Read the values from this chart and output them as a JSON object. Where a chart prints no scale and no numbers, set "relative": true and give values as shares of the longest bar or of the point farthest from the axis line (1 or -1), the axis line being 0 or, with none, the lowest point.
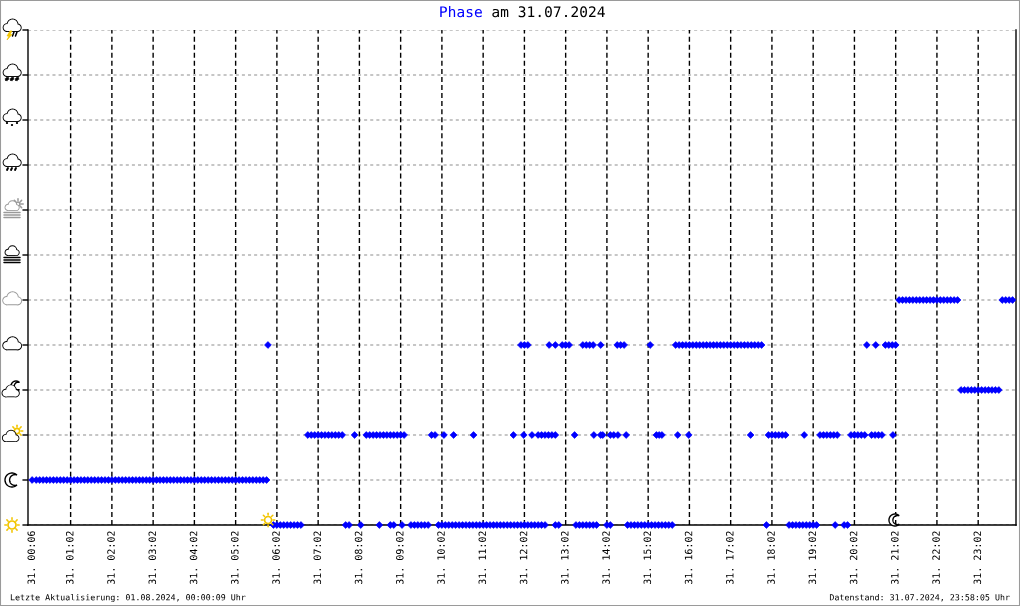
{
  "chart_data": {
    "type": "scatter",
    "title": "am 31.07.2024",
    "relative": true,
    "xlim": [
      "2024-07-31T00:00",
      "2024-07-31T23:57"
    ],
    "xticks": [
      {
        "value": "2024-07-31T00:06",
        "label": "31. 00:06"
      },
      {
        "value": "2024-07-31T01:02",
        "label": "31. 01:02"
      },
      {
        "value": "2024-07-31T02:02",
        "label": "31. 02:02"
      },
      {
        "value": "2024-07-31T03:02",
        "label": "31. 03:02"
      },
      {
        "value": "2024-07-31T04:02",
        "label": "31. 04:02"
      },
      {
        "value": "2024-07-31T05:02",
        "label": "31. 05:02"
      },
      {
        "value": "2024-07-31T06:02",
        "label": "31. 06:02"
      },
      {
        "value": "2024-07-31T07:02",
        "label": "31. 07:02"
      },
      {
        "value": "2024-07-31T08:02",
        "label": "31. 08:02"
      },
      {
        "value": "2024-07-31T09:02",
        "label": "31. 09:02"
      },
      {
        "value": "2024-07-31T10:02",
        "label": "31. 10:02"
      },
      {
        "value": "2024-07-31T11:02",
        "label": "31. 11:02"
      },
      {
        "value": "2024-07-31T12:02",
        "label": "31. 12:02"
      },
      {
        "value": "2024-07-31T13:02",
        "label": "31. 13:02"
      },
      {
        "value": "2024-07-31T14:02",
        "label": "31. 14:02"
      },
      {
        "value": "2024-07-31T15:02",
        "label": "31. 15:02"
      },
      {
        "value": "2024-07-31T16:02",
        "label": "31. 16:02"
      },
      {
        "value": "2024-07-31T17:02",
        "label": "31. 17:02"
      },
      {
        "value": "2024-07-31T18:02",
        "label": "31. 18:02"
      },
      {
        "value": "2024-07-31T19:02",
        "label": "31. 19:02"
      },
      {
        "value": "2024-07-31T20:02",
        "label": "31. 20:02"
      },
      {
        "value": "2024-07-31T21:02",
        "label": "31. 21:02"
      },
      {
        "value": "2024-07-31T22:02",
        "label": "31. 22:02"
      },
      {
        "value": "2024-07-31T23:02",
        "label": "31. 23:02"
      }
    ],
    "grid": true,
    "marker": "diamond",
    "series": [
      {
        "name": "Phase",
        "color": "#0000ff",
        "x": [
          "2024-07-31T00:06",
          "2024-07-31T00:12",
          "2024-07-31T00:17",
          "2024-07-31T00:22",
          "2024-07-31T00:27",
          "2024-07-31T00:32",
          "2024-07-31T00:37",
          "2024-07-31T00:42",
          "2024-07-31T00:47",
          "2024-07-31T00:52",
          "2024-07-31T00:57",
          "2024-07-31T01:02",
          "2024-07-31T01:07",
          "2024-07-31T01:12",
          "2024-07-31T01:17",
          "2024-07-31T01:22",
          "2024-07-31T01:27",
          "2024-07-31T01:32",
          "2024-07-31T01:37",
          "2024-07-31T01:42",
          "2024-07-31T01:47",
          "2024-07-31T01:52",
          "2024-07-31T01:57",
          "2024-07-31T02:02",
          "2024-07-31T02:07",
          "2024-07-31T02:12",
          "2024-07-31T02:17",
          "2024-07-31T02:22",
          "2024-07-31T02:27",
          "2024-07-31T02:32",
          "2024-07-31T02:37",
          "2024-07-31T02:42",
          "2024-07-31T02:47",
          "2024-07-31T02:52",
          "2024-07-31T02:57",
          "2024-07-31T03:02",
          "2024-07-31T03:07",
          "2024-07-31T03:12",
          "2024-07-31T03:17",
          "2024-07-31T03:22",
          "2024-07-31T03:27",
          "2024-07-31T03:32",
          "2024-07-31T03:37",
          "2024-07-31T03:42",
          "2024-07-31T03:47",
          "2024-07-31T03:52",
          "2024-07-31T03:57",
          "2024-07-31T04:02",
          "2024-07-31T04:07",
          "2024-07-31T04:12",
          "2024-07-31T04:17",
          "2024-07-31T04:22",
          "2024-07-31T04:27",
          "2024-07-31T04:32",
          "2024-07-31T04:37",
          "2024-07-31T04:42",
          "2024-07-31T04:47",
          "2024-07-31T04:52",
          "2024-07-31T04:57",
          "2024-07-31T05:02",
          "2024-07-31T05:07",
          "2024-07-31T05:12",
          "2024-07-31T05:17",
          "2024-07-31T05:22",
          "2024-07-31T05:27",
          "2024-07-31T05:32",
          "2024-07-31T05:37",
          "2024-07-31T05:42",
          "2024-07-31T05:47",
          "2024-07-31T05:49",
          "2024-07-31T11:57",
          "2024-07-31T12:02",
          "2024-07-31T12:07",
          "2024-07-31T12:38",
          "2024-07-31T12:47",
          "2024-07-31T12:57",
          "2024-07-31T13:02",
          "2024-07-31T13:07",
          "2024-07-31T13:27",
          "2024-07-31T13:32",
          "2024-07-31T13:37",
          "2024-07-31T13:42",
          "2024-07-31T13:53",
          "2024-07-31T14:17",
          "2024-07-31T14:22",
          "2024-07-31T14:27",
          "2024-07-31T15:05",
          "2024-07-31T15:42",
          "2024-07-31T15:47",
          "2024-07-31T15:52",
          "2024-07-31T15:57",
          "2024-07-31T16:02",
          "2024-07-31T16:07",
          "2024-07-31T16:12",
          "2024-07-31T16:17",
          "2024-07-31T16:22",
          "2024-07-31T16:27",
          "2024-07-31T16:32",
          "2024-07-31T16:37",
          "2024-07-31T16:42",
          "2024-07-31T16:47",
          "2024-07-31T16:52",
          "2024-07-31T16:57",
          "2024-07-31T17:02",
          "2024-07-31T17:07",
          "2024-07-31T17:12",
          "2024-07-31T17:17",
          "2024-07-31T17:22",
          "2024-07-31T17:27",
          "2024-07-31T17:32",
          "2024-07-31T17:37",
          "2024-07-31T17:42",
          "2024-07-31T17:47",
          "2024-07-31T20:20",
          "2024-07-31T20:33",
          "2024-07-31T20:47",
          "2024-07-31T20:52",
          "2024-07-31T20:57",
          "2024-07-31T21:02",
          "2024-07-31T06:47",
          "2024-07-31T06:52",
          "2024-07-31T06:57",
          "2024-07-31T07:02",
          "2024-07-31T07:07",
          "2024-07-31T07:12",
          "2024-07-31T07:17",
          "2024-07-31T07:22",
          "2024-07-31T07:27",
          "2024-07-31T07:32",
          "2024-07-31T07:37",
          "2024-07-31T07:55",
          "2024-07-31T08:12",
          "2024-07-31T08:17",
          "2024-07-31T08:22",
          "2024-07-31T08:27",
          "2024-07-31T08:32",
          "2024-07-31T08:37",
          "2024-07-31T08:42",
          "2024-07-31T08:47",
          "2024-07-31T08:52",
          "2024-07-31T08:57",
          "2024-07-31T09:02",
          "2024-07-31T09:07",
          "2024-07-31T09:47",
          "2024-07-31T09:52",
          "2024-07-31T10:05",
          "2024-07-31T10:19",
          "2024-07-31T10:48",
          "2024-07-31T11:46",
          "2024-07-31T12:01",
          "2024-07-31T12:13",
          "2024-07-31T12:22",
          "2024-07-31T12:27",
          "2024-07-31T12:32",
          "2024-07-31T12:37",
          "2024-07-31T12:42",
          "2024-07-31T12:47",
          "2024-07-31T13:15",
          "2024-07-31T13:43",
          "2024-07-31T13:53",
          "2024-07-31T13:56",
          "2024-07-31T14:07",
          "2024-07-31T14:12",
          "2024-07-31T14:18",
          "2024-07-31T14:30",
          "2024-07-31T15:14",
          "2024-07-31T15:18",
          "2024-07-31T15:22",
          "2024-07-31T15:45",
          "2024-07-31T16:01",
          "2024-07-31T17:31",
          "2024-07-31T17:57",
          "2024-07-31T18:02",
          "2024-07-31T18:07",
          "2024-07-31T18:12",
          "2024-07-31T18:17",
          "2024-07-31T18:22",
          "2024-07-31T18:49",
          "2024-07-31T19:12",
          "2024-07-31T19:17",
          "2024-07-31T19:22",
          "2024-07-31T19:27",
          "2024-07-31T19:32",
          "2024-07-31T19:37",
          "2024-07-31T19:57",
          "2024-07-31T20:02",
          "2024-07-31T20:07",
          "2024-07-31T20:12",
          "2024-07-31T20:17",
          "2024-07-31T20:27",
          "2024-07-31T20:32",
          "2024-07-31T20:37",
          "2024-07-31T20:42",
          "2024-07-31T20:58",
          "2024-07-31T05:57",
          "2024-07-31T06:02",
          "2024-07-31T06:07",
          "2024-07-31T06:12",
          "2024-07-31T06:17",
          "2024-07-31T06:22",
          "2024-07-31T06:27",
          "2024-07-31T06:32",
          "2024-07-31T06:37",
          "2024-07-31T07:42",
          "2024-07-31T07:47",
          "2024-07-31T08:04",
          "2024-07-31T08:31",
          "2024-07-31T08:47",
          "2024-07-31T08:52",
          "2024-07-31T09:04",
          "2024-07-31T09:17",
          "2024-07-31T09:22",
          "2024-07-31T09:27",
          "2024-07-31T09:32",
          "2024-07-31T09:37",
          "2024-07-31T09:42",
          "2024-07-31T09:57",
          "2024-07-31T10:02",
          "2024-07-31T10:07",
          "2024-07-31T10:12",
          "2024-07-31T10:17",
          "2024-07-31T10:22",
          "2024-07-31T10:27",
          "2024-07-31T10:32",
          "2024-07-31T10:37",
          "2024-07-31T10:42",
          "2024-07-31T10:47",
          "2024-07-31T10:52",
          "2024-07-31T10:57",
          "2024-07-31T11:02",
          "2024-07-31T11:07",
          "2024-07-31T11:12",
          "2024-07-31T11:17",
          "2024-07-31T11:22",
          "2024-07-31T11:27",
          "2024-07-31T11:32",
          "2024-07-31T11:37",
          "2024-07-31T11:42",
          "2024-07-31T11:47",
          "2024-07-31T11:52",
          "2024-07-31T11:57",
          "2024-07-31T12:02",
          "2024-07-31T12:07",
          "2024-07-31T12:12",
          "2024-07-31T12:17",
          "2024-07-31T12:22",
          "2024-07-31T12:27",
          "2024-07-31T12:32",
          "2024-07-31T12:47",
          "2024-07-31T12:52",
          "2024-07-31T13:17",
          "2024-07-31T13:22",
          "2024-07-31T13:27",
          "2024-07-31T13:32",
          "2024-07-31T13:37",
          "2024-07-31T13:42",
          "2024-07-31T13:47",
          "2024-07-31T14:02",
          "2024-07-31T14:07",
          "2024-07-31T14:32",
          "2024-07-31T14:37",
          "2024-07-31T14:42",
          "2024-07-31T14:47",
          "2024-07-31T14:52",
          "2024-07-31T14:57",
          "2024-07-31T15:02",
          "2024-07-31T15:07",
          "2024-07-31T15:12",
          "2024-07-31T15:17",
          "2024-07-31T15:22",
          "2024-07-31T15:27",
          "2024-07-31T15:32",
          "2024-07-31T15:37",
          "2024-07-31T17:54",
          "2024-07-31T18:27",
          "2024-07-31T18:32",
          "2024-07-31T18:37",
          "2024-07-31T18:42",
          "2024-07-31T18:47",
          "2024-07-31T18:52",
          "2024-07-31T18:57",
          "2024-07-31T19:02",
          "2024-07-31T19:07",
          "2024-07-31T19:34",
          "2024-07-31T19:47",
          "2024-07-31T19:52",
          "2024-07-31T22:37",
          "2024-07-31T22:42",
          "2024-07-31T22:47",
          "2024-07-31T22:52",
          "2024-07-31T22:57",
          "2024-07-31T23:02",
          "2024-07-31T23:07",
          "2024-07-31T23:12",
          "2024-07-31T23:17",
          "2024-07-31T23:22",
          "2024-07-31T23:27",
          "2024-07-31T23:32",
          "2024-07-31T21:07",
          "2024-07-31T21:12",
          "2024-07-31T21:17",
          "2024-07-31T21:22",
          "2024-07-31T21:27",
          "2024-07-31T21:32",
          "2024-07-31T21:37",
          "2024-07-31T21:42",
          "2024-07-31T21:47",
          "2024-07-31T21:52",
          "2024-07-31T21:57",
          "2024-07-31T22:02",
          "2024-07-31T22:07",
          "2024-07-31T22:12",
          "2024-07-31T22:17",
          "2024-07-31T22:22",
          "2024-07-31T22:27",
          "2024-07-31T22:32",
          "2024-07-31T23:37",
          "2024-07-31T23:42",
          "2024-07-31T23:47",
          "2024-07-31T23:52"
        ],
        "values": [
          0.2,
          0.2,
          0.2,
          0.2,
          0.2,
          0.2,
          0.2,
          0.2,
          0.2,
          0.2,
          0.2,
          0.2,
          0.2,
          0.2,
          0.2,
          0.2,
          0.2,
          0.2,
          0.2,
          0.2,
          0.2,
          0.2,
          0.2,
          0.2,
          0.2,
          0.2,
          0.2,
          0.2,
          0.2,
          0.2,
          0.2,
          0.2,
          0.2,
          0.2,
          0.2,
          0.2,
          0.2,
          0.2,
          0.2,
          0.2,
          0.2,
          0.2,
          0.2,
          0.2,
          0.2,
          0.2,
          0.2,
          0.2,
          0.2,
          0.2,
          0.2,
          0.2,
          0.2,
          0.2,
          0.2,
          0.2,
          0.2,
          0.2,
          0.2,
          0.2,
          0.2,
          0.2,
          0.2,
          0.2,
          0.2,
          0.2,
          0.2,
          0.2,
          0.2,
          0.8,
          0.8,
          0.8,
          0.8,
          0.8,
          0.8,
          0.8,
          0.8,
          0.8,
          0.8,
          0.8,
          0.8,
          0.8,
          0.8,
          0.8,
          0.8,
          0.8,
          0.8,
          0.8,
          0.8,
          0.8,
          0.8,
          0.8,
          0.8,
          0.8,
          0.8,
          0.8,
          0.8,
          0.8,
          0.8,
          0.8,
          0.8,
          0.8,
          0.8,
          0.8,
          0.8,
          0.8,
          0.8,
          0.8,
          0.8,
          0.8,
          0.8,
          0.8,
          0.8,
          0.8,
          0.8,
          0.8,
          0.8,
          0.8,
          0.8,
          0.4,
          0.4,
          0.4,
          0.4,
          0.4,
          0.4,
          0.4,
          0.4,
          0.4,
          0.4,
          0.4,
          0.4,
          0.4,
          0.4,
          0.4,
          0.4,
          0.4,
          0.4,
          0.4,
          0.4,
          0.4,
          0.4,
          0.4,
          0.4,
          0.4,
          0.4,
          0.4,
          0.4,
          0.4,
          0.4,
          0.4,
          0.4,
          0.4,
          0.4,
          0.4,
          0.4,
          0.4,
          0.4,
          0.4,
          0.4,
          0.4,
          0.4,
          0.4,
          0.4,
          0.4,
          0.4,
          0.4,
          0.4,
          0.4,
          0.4,
          0.4,
          0.4,
          0.4,
          0.4,
          0.4,
          0.4,
          0.4,
          0.4,
          0.4,
          0.4,
          0.4,
          0.4,
          0.4,
          0.4,
          0.4,
          0.4,
          0.4,
          0.4,
          0.4,
          0.4,
          0.4,
          0.4,
          0.4,
          0.4,
          0.4,
          0,
          0,
          0,
          0,
          0,
          0,
          0,
          0,
          0,
          0,
          0,
          0,
          0,
          0,
          0,
          0,
          0,
          0,
          0,
          0,
          0,
          0,
          0,
          0,
          0,
          0,
          0,
          0,
          0,
          0,
          0,
          0,
          0,
          0,
          0,
          0,
          0,
          0,
          0,
          0,
          0,
          0,
          0,
          0,
          0,
          0,
          0,
          0,
          0,
          0,
          0,
          0,
          0,
          0,
          0,
          0,
          0,
          0,
          0,
          0,
          0,
          0,
          0,
          0,
          0,
          0,
          0,
          0,
          0,
          0,
          0,
          0,
          0,
          0,
          0,
          0,
          0,
          0,
          0,
          0,
          0,
          0,
          0,
          0,
          0,
          0,
          0,
          0,
          0,
          0,
          0,
          0,
          0.6,
          0.6,
          0.6,
          0.6,
          0.6,
          0.6,
          0.6,
          0.6,
          0.6,
          0.6,
          0.6,
          0.6,
          1,
          1,
          1,
          1,
          1,
          1,
          1,
          1,
          1,
          1,
          1,
          1,
          1,
          1,
          1,
          1,
          1,
          1,
          1,
          1,
          1,
          1
        ]
      }
    ],
    "annotations": [
      "Letzte Aktualisierung: 01.08.2024, 00:00:09 Uhr",
      "Datenstand: 31.07.2024, 23:58:05 Uhr"
    ]
  }
}
